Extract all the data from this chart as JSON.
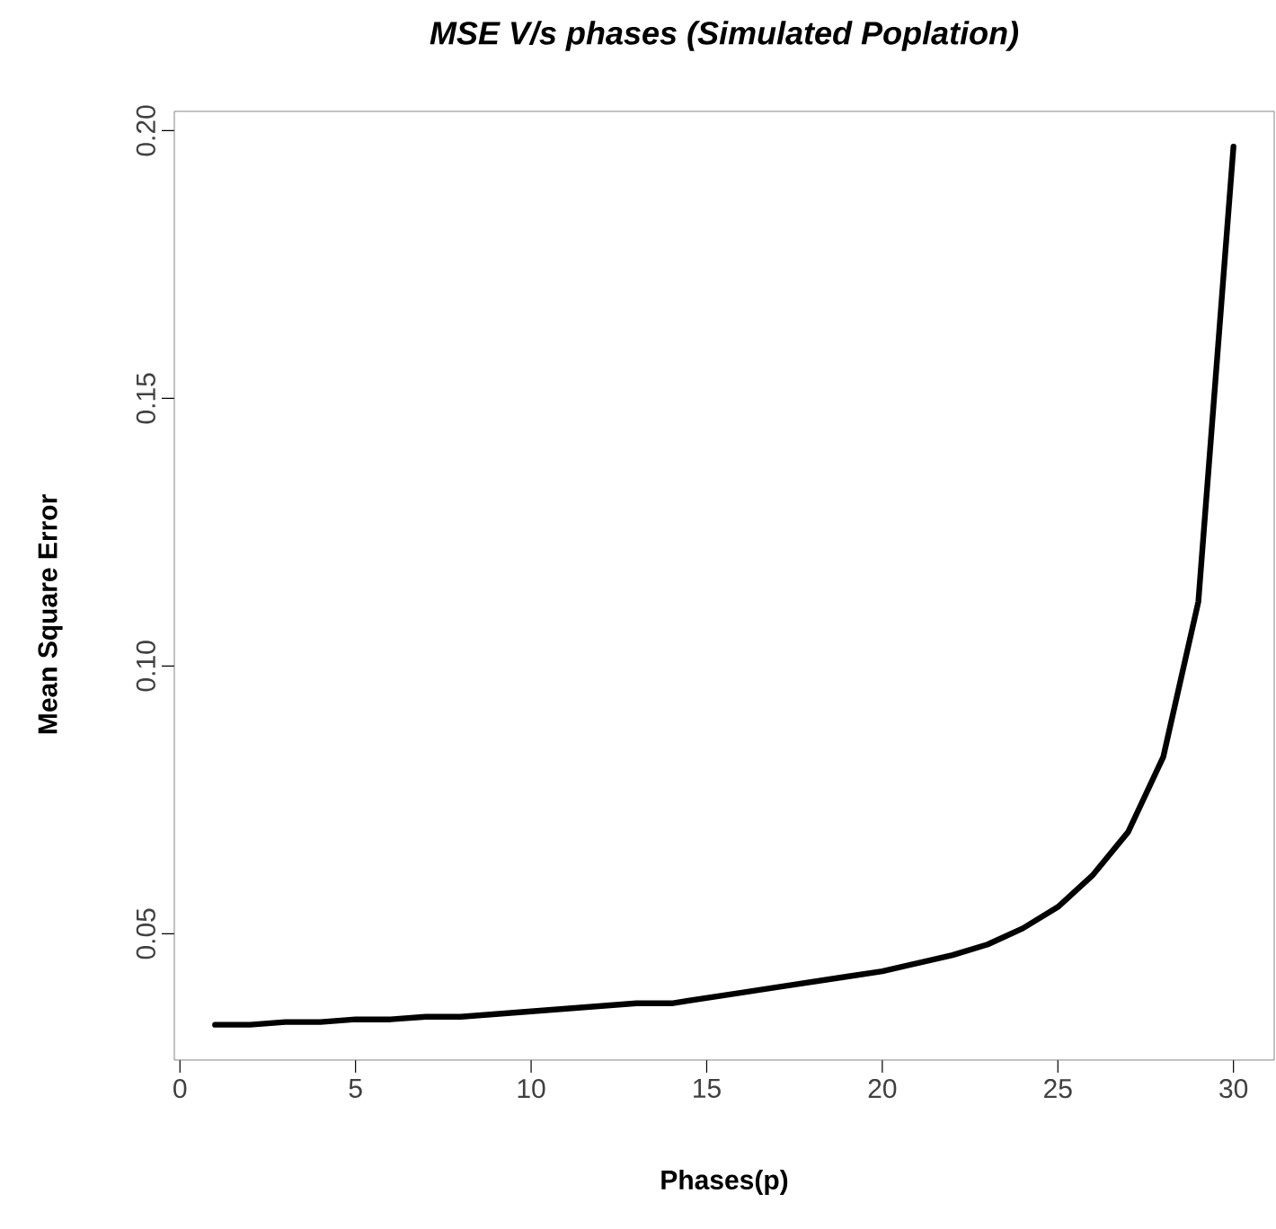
{
  "chart_data": {
    "type": "line",
    "title": "MSE V/s phases (Simulated Poplation)",
    "xlabel": "Phases(p)",
    "ylabel": "Mean Square Error",
    "x": [
      1,
      2,
      3,
      4,
      5,
      6,
      7,
      8,
      9,
      10,
      11,
      12,
      13,
      14,
      15,
      16,
      17,
      18,
      19,
      20,
      21,
      22,
      23,
      24,
      25,
      26,
      27,
      28,
      29,
      30
    ],
    "series": [
      {
        "color": "#000000",
        "values": [
          0.033,
          0.033,
          0.0335,
          0.0335,
          0.034,
          0.034,
          0.0345,
          0.0345,
          0.035,
          0.0355,
          0.036,
          0.0365,
          0.037,
          0.037,
          0.038,
          0.039,
          0.04,
          0.041,
          0.042,
          0.043,
          0.0445,
          0.046,
          0.048,
          0.051,
          0.055,
          0.061,
          0.069,
          0.083,
          0.112,
          0.197
        ]
      }
    ],
    "xlim": [
      -0.16,
      31.16
    ],
    "ylim": [
      0.0264,
      0.2036
    ],
    "xticks": [
      0,
      5,
      10,
      15,
      20,
      25,
      30
    ],
    "yticks": [
      {
        "value": 0.05,
        "label": "0.05"
      },
      {
        "value": 0.1,
        "label": "0.10"
      },
      {
        "value": 0.15,
        "label": "0.15"
      },
      {
        "value": 0.2,
        "label": "0.20"
      }
    ],
    "marker": "none",
    "line_style": "solid"
  }
}
